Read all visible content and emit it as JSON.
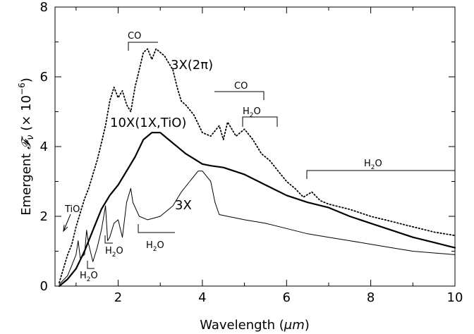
{
  "chart_data": {
    "type": "line",
    "title": "",
    "xlabel": "Wavelength (μm)",
    "ylabel": "Emergent 𝓕ν (× 10⁻⁶)",
    "xlim": [
      0.5,
      10
    ],
    "ylim": [
      0,
      8
    ],
    "x_ticks": [
      2,
      4,
      6,
      8,
      10
    ],
    "y_ticks": [
      0,
      2,
      4,
      6,
      8
    ],
    "grid": false,
    "legend": "none",
    "series": [
      {
        "name": "3X(2π)",
        "style": "dotted",
        "points": [
          [
            0.6,
            0.1
          ],
          [
            0.7,
            0.5
          ],
          [
            0.8,
            0.9
          ],
          [
            0.9,
            1.2
          ],
          [
            1.0,
            1.7
          ],
          [
            1.1,
            2.1
          ],
          [
            1.2,
            2.5
          ],
          [
            1.3,
            2.8
          ],
          [
            1.4,
            3.2
          ],
          [
            1.5,
            3.6
          ],
          [
            1.6,
            4.1
          ],
          [
            1.7,
            4.6
          ],
          [
            1.8,
            5.3
          ],
          [
            1.9,
            5.7
          ],
          [
            2.0,
            5.4
          ],
          [
            2.1,
            5.6
          ],
          [
            2.2,
            5.2
          ],
          [
            2.3,
            5.0
          ],
          [
            2.4,
            5.7
          ],
          [
            2.5,
            6.2
          ],
          [
            2.6,
            6.7
          ],
          [
            2.7,
            6.8
          ],
          [
            2.8,
            6.5
          ],
          [
            2.9,
            6.8
          ],
          [
            3.0,
            6.7
          ],
          [
            3.1,
            6.6
          ],
          [
            3.2,
            6.4
          ],
          [
            3.3,
            6.2
          ],
          [
            3.4,
            5.7
          ],
          [
            3.5,
            5.3
          ],
          [
            3.6,
            5.2
          ],
          [
            3.8,
            4.9
          ],
          [
            4.0,
            4.4
          ],
          [
            4.2,
            4.3
          ],
          [
            4.4,
            4.6
          ],
          [
            4.5,
            4.2
          ],
          [
            4.6,
            4.7
          ],
          [
            4.8,
            4.3
          ],
          [
            5.0,
            4.5
          ],
          [
            5.2,
            4.2
          ],
          [
            5.4,
            3.8
          ],
          [
            5.6,
            3.6
          ],
          [
            5.8,
            3.3
          ],
          [
            6.0,
            3.0
          ],
          [
            6.2,
            2.8
          ],
          [
            6.4,
            2.55
          ],
          [
            6.6,
            2.7
          ],
          [
            6.8,
            2.45
          ],
          [
            7.0,
            2.35
          ],
          [
            7.5,
            2.2
          ],
          [
            8.0,
            2.0
          ],
          [
            8.5,
            1.85
          ],
          [
            9.0,
            1.7
          ],
          [
            9.5,
            1.55
          ],
          [
            10.0,
            1.45
          ]
        ]
      },
      {
        "name": "10X(1X,TiO)",
        "style": "thick",
        "points": [
          [
            0.6,
            0.0
          ],
          [
            0.8,
            0.2
          ],
          [
            1.0,
            0.5
          ],
          [
            1.2,
            1.0
          ],
          [
            1.4,
            1.6
          ],
          [
            1.6,
            2.2
          ],
          [
            1.8,
            2.6
          ],
          [
            2.0,
            2.9
          ],
          [
            2.2,
            3.3
          ],
          [
            2.4,
            3.7
          ],
          [
            2.6,
            4.2
          ],
          [
            2.8,
            4.4
          ],
          [
            3.0,
            4.4
          ],
          [
            3.2,
            4.2
          ],
          [
            3.4,
            4.0
          ],
          [
            3.6,
            3.8
          ],
          [
            3.8,
            3.65
          ],
          [
            4.0,
            3.5
          ],
          [
            4.2,
            3.45
          ],
          [
            4.5,
            3.4
          ],
          [
            5.0,
            3.2
          ],
          [
            5.5,
            2.9
          ],
          [
            6.0,
            2.6
          ],
          [
            6.5,
            2.4
          ],
          [
            7.0,
            2.25
          ],
          [
            7.5,
            2.0
          ],
          [
            8.0,
            1.8
          ],
          [
            8.5,
            1.6
          ],
          [
            9.0,
            1.4
          ],
          [
            9.5,
            1.25
          ],
          [
            10.0,
            1.1
          ]
        ]
      },
      {
        "name": "3X",
        "style": "thin",
        "points": [
          [
            0.6,
            0.05
          ],
          [
            0.8,
            0.3
          ],
          [
            0.9,
            0.6
          ],
          [
            1.0,
            0.9
          ],
          [
            1.05,
            1.3
          ],
          [
            1.1,
            0.8
          ],
          [
            1.2,
            0.9
          ],
          [
            1.25,
            1.6
          ],
          [
            1.3,
            1.2
          ],
          [
            1.4,
            0.7
          ],
          [
            1.5,
            1.1
          ],
          [
            1.6,
            1.6
          ],
          [
            1.7,
            2.3
          ],
          [
            1.75,
            1.3
          ],
          [
            1.8,
            1.4
          ],
          [
            1.9,
            1.8
          ],
          [
            2.0,
            1.9
          ],
          [
            2.1,
            1.4
          ],
          [
            2.2,
            2.4
          ],
          [
            2.3,
            2.8
          ],
          [
            2.35,
            2.4
          ],
          [
            2.5,
            2.0
          ],
          [
            2.7,
            1.9
          ],
          [
            3.0,
            2.0
          ],
          [
            3.3,
            2.3
          ],
          [
            3.5,
            2.7
          ],
          [
            3.7,
            3.0
          ],
          [
            3.9,
            3.3
          ],
          [
            4.0,
            3.3
          ],
          [
            4.2,
            3.0
          ],
          [
            4.3,
            2.4
          ],
          [
            4.4,
            2.05
          ],
          [
            4.6,
            2.0
          ],
          [
            5.0,
            1.9
          ],
          [
            5.5,
            1.8
          ],
          [
            6.0,
            1.65
          ],
          [
            6.5,
            1.5
          ],
          [
            7.0,
            1.4
          ],
          [
            7.5,
            1.3
          ],
          [
            8.0,
            1.2
          ],
          [
            8.5,
            1.1
          ],
          [
            9.0,
            1.0
          ],
          [
            9.5,
            0.95
          ],
          [
            10.0,
            0.9
          ]
        ]
      }
    ],
    "annotations": [
      {
        "text": "3X(2π)",
        "x": 3.9,
        "y": 6.3
      },
      {
        "text": "10X(1X,TiO)",
        "x": 3.5,
        "y": 4.5
      },
      {
        "text": "3X",
        "x": 3.5,
        "y": 2.1
      },
      {
        "text": "TiO",
        "x": 0.95,
        "y": 2.15
      },
      {
        "text": "H2O",
        "x": 1.35,
        "y": 0.1,
        "note": "band label"
      },
      {
        "text": "H2O",
        "x": 2.0,
        "y": 0.85
      },
      {
        "text": "H2O",
        "x": 3.1,
        "y": 0.85
      },
      {
        "text": "CO",
        "x": 2.3,
        "y": 7.1
      },
      {
        "text": "CO",
        "x": 4.9,
        "y": 5.4
      },
      {
        "text": "H2O",
        "x": 5.3,
        "y": 4.8
      },
      {
        "text": "H2O",
        "x": 8.5,
        "y": 3.5
      }
    ]
  },
  "labels": {
    "xlabel_text": "Wavelength (",
    "xlabel_mu": "μm",
    "xlabel_close": ")",
    "ylabel_main": "Emergent ",
    "ylabel_F": "𝓕",
    "ylabel_nu": "ν",
    "ylabel_scale": " (× 10",
    "ylabel_exp": "−6",
    "ylabel_close": ")",
    "series_label_2pi": "3X(2π)",
    "series_label_tio": "10X(1X,TiO)",
    "series_label_3x": "3X",
    "tio": "TiO",
    "co_1": "CO",
    "co_2": "CO",
    "h2o_1": "H",
    "h2o_2": "H",
    "h2o_3": "H",
    "h2o_4": "H",
    "h2o_5": "H",
    "o_suffix": "O",
    "sub_2": "2"
  }
}
